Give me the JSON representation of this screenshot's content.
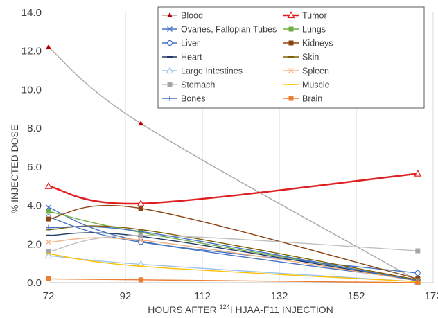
{
  "chart_data": {
    "type": "line",
    "xlabel_pre": "HOURS AFTER ",
    "xlabel_sup": "124",
    "xlabel_post": "I HJAA-F11 INJECTION",
    "ylabel": "% INJECTED DOSE",
    "x": [
      72,
      96,
      168
    ],
    "xlim": [
      72,
      172
    ],
    "xticks": [
      "72",
      "92",
      "112",
      "132",
      "152",
      "172"
    ],
    "ylim": [
      0,
      14
    ],
    "yticks": [
      "0.0",
      "2.0",
      "4.0",
      "6.0",
      "8.0",
      "10.0",
      "12.0",
      "14.0"
    ],
    "grid": "vertical",
    "legend_position": "top-right",
    "series": [
      {
        "name": "Blood",
        "values": [
          12.2,
          8.25,
          0.1
        ],
        "color": "#a6a6a6",
        "marker": "triangle-filled",
        "marker_color": "#c00000"
      },
      {
        "name": "Tumor",
        "values": [
          5.0,
          4.1,
          5.65
        ],
        "color": "#e02020",
        "marker": "triangle-open",
        "marker_color": "#e02020"
      },
      {
        "name": "Ovaries, Fallopian Tubes",
        "values": [
          3.9,
          2.15,
          0.15
        ],
        "color": "#4472c4",
        "marker": "x",
        "marker_color": "#4472c4"
      },
      {
        "name": "Lungs",
        "values": [
          3.7,
          2.6,
          0.15
        ],
        "color": "#70ad47",
        "marker": "square",
        "marker_color": "#70ad47"
      },
      {
        "name": "Liver",
        "values": [
          3.4,
          2.1,
          0.5
        ],
        "color": "#4472c4",
        "marker": "circle-open",
        "marker_color": "#4472c4"
      },
      {
        "name": "Kidneys",
        "values": [
          3.3,
          3.85,
          0.2
        ],
        "color": "#8b4513",
        "marker": "square",
        "marker_color": "#8b4513"
      },
      {
        "name": "Heart",
        "values": [
          2.45,
          2.4,
          0.1
        ],
        "color": "#1f3864",
        "marker": "dash",
        "marker_color": "#1f3864"
      },
      {
        "name": "Skin",
        "values": [
          2.75,
          2.75,
          0.15
        ],
        "color": "#7f6000",
        "marker": "dash",
        "marker_color": "#7f6000"
      },
      {
        "name": "Large Intestines",
        "values": [
          1.4,
          0.95,
          0.05
        ],
        "color": "#9dc3e6",
        "marker": "triangle-open",
        "marker_color": "#9dc3e6"
      },
      {
        "name": "Spleen",
        "values": [
          2.1,
          2.2,
          0.1
        ],
        "color": "#f4b183",
        "marker": "x",
        "marker_color": "#f4b183"
      },
      {
        "name": "Stomach",
        "values": [
          1.6,
          2.45,
          1.65
        ],
        "color": "#bfbfbf",
        "marker": "square",
        "marker_color": "#a6a6a6"
      },
      {
        "name": "Muscle",
        "values": [
          1.5,
          0.85,
          0.05
        ],
        "color": "#ffc000",
        "marker": "dash",
        "marker_color": "#ffc000"
      },
      {
        "name": "Bones",
        "values": [
          2.85,
          2.65,
          0.1
        ],
        "color": "#4472c4",
        "marker": "plus",
        "marker_color": "#4472c4"
      },
      {
        "name": "Brain",
        "values": [
          0.2,
          0.15,
          0.0
        ],
        "color": "#ed7d31",
        "marker": "square",
        "marker_color": "#ed7d31"
      }
    ]
  }
}
